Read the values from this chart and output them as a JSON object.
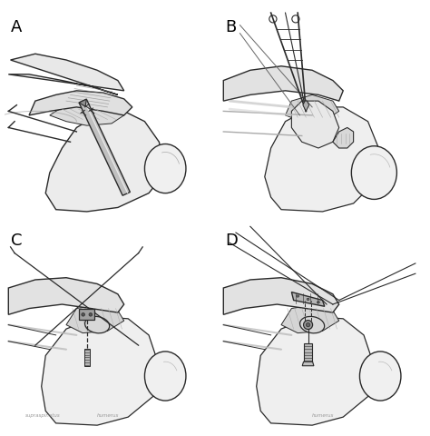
{
  "figure_width": 4.74,
  "figure_height": 4.8,
  "dpi": 100,
  "background_color": "#ffffff",
  "panel_labels": [
    "A",
    "B",
    "C",
    "D"
  ],
  "panel_label_fontsize": 13,
  "panel_label_fontweight": "normal",
  "panel_label_color": "#000000",
  "line_color": "#2a2a2a",
  "shading_light": "#d8d8d8",
  "shading_mid": "#b8b8b8",
  "shading_dark": "#888888"
}
